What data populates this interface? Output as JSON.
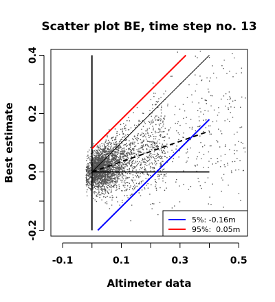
{
  "chart_data": {
    "type": "scatter",
    "title": "Scatter plot BE, time step no. 13",
    "xlabel": "Altimeter data",
    "ylabel": "Best estimate",
    "xlim": [
      -0.14,
      0.53
    ],
    "ylim": [
      -0.22,
      0.42
    ],
    "xticks": [
      {
        "value": -0.1,
        "label": "-0.1"
      },
      {
        "value": 0.1,
        "label": "0.1"
      },
      {
        "value": 0.3,
        "label": "0.3"
      },
      {
        "value": 0.5,
        "label": "0.5"
      }
    ],
    "yticks": [
      {
        "value": -0.2,
        "label": "-0.2"
      },
      {
        "value": 0.0,
        "label": "0.0"
      },
      {
        "value": 0.2,
        "label": "0.2"
      },
      {
        "value": 0.4,
        "label": "0.4"
      }
    ],
    "point_color": "#555555",
    "points_note": "dense cloud of several thousand points concentrated near x in [0, 0.15], y in [-0.05, 0.1], spreading out to x=0.5",
    "lines": [
      {
        "id": "zero-vertical",
        "style": "solid",
        "color": "#000000",
        "x": [
          0.0,
          0.0
        ],
        "y": [
          -0.2,
          0.4
        ]
      },
      {
        "id": "zero-horizontal",
        "style": "solid",
        "color": "#000000",
        "x": [
          0.0,
          0.4
        ],
        "y": [
          0.0,
          0.0
        ]
      },
      {
        "id": "identity",
        "style": "solid-thin",
        "color": "#000000",
        "x": [
          0.0,
          0.4
        ],
        "y": [
          0.0,
          0.4
        ]
      },
      {
        "id": "regression",
        "style": "dashed",
        "color": "#000000",
        "x": [
          0.0,
          0.4
        ],
        "y": [
          0.0,
          0.14
        ]
      },
      {
        "id": "p5",
        "style": "solid",
        "color": "#0000ff",
        "x": [
          0.02,
          0.4
        ],
        "y": [
          -0.2,
          0.18
        ]
      },
      {
        "id": "p95",
        "style": "solid",
        "color": "#ff0000",
        "x": [
          0.0,
          0.32
        ],
        "y": [
          0.08,
          0.4
        ]
      }
    ],
    "legend": {
      "position": "bottom-right",
      "entries": [
        {
          "color": "#0000ff",
          "label": "5%: -0.16m"
        },
        {
          "color": "#ff0000",
          "label": "95%:  0.05m"
        }
      ]
    }
  }
}
